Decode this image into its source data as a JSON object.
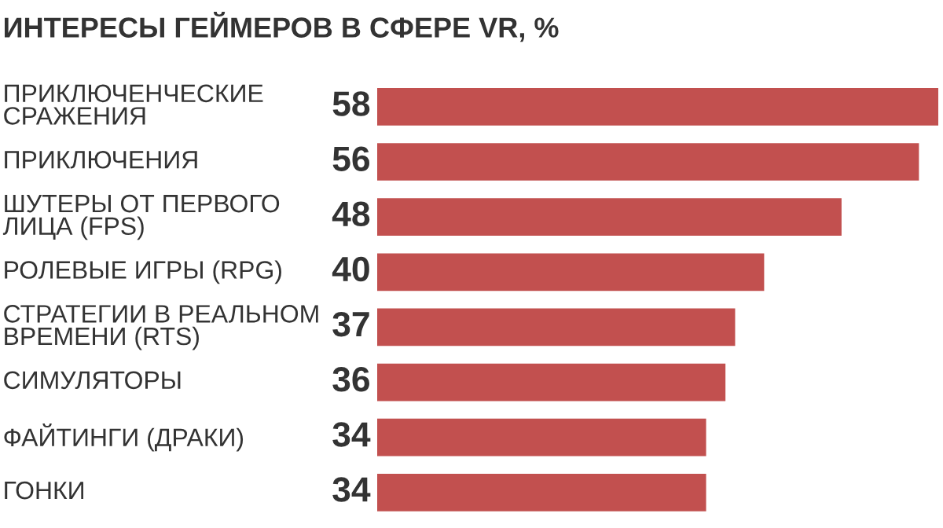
{
  "chart_data": {
    "type": "bar",
    "orientation": "horizontal",
    "title": "ИНТЕРЕСЫ ГЕЙМЕРОВ В СФЕРЕ VR, %",
    "categories": [
      "ПРИКЛЮЧЕНЧЕСКИЕ\nСРАЖЕНИЯ",
      "ПРИКЛЮЧЕНИЯ",
      "ШУТЕРЫ ОТ ПЕРВОГО\nЛИЦА (FPS)",
      "РОЛЕВЫЕ ИГРЫ (RPG)",
      "СТРАТЕГИИ В РЕАЛЬНОМ\nВРЕМЕНИ (RTS)",
      "СИМУЛЯТОРЫ",
      "ФАЙТИНГИ (ДРАКИ)",
      "ГОНКИ"
    ],
    "values": [
      58,
      56,
      48,
      40,
      37,
      36,
      34,
      34
    ],
    "color": "#c2504f",
    "data_labels": true
  }
}
